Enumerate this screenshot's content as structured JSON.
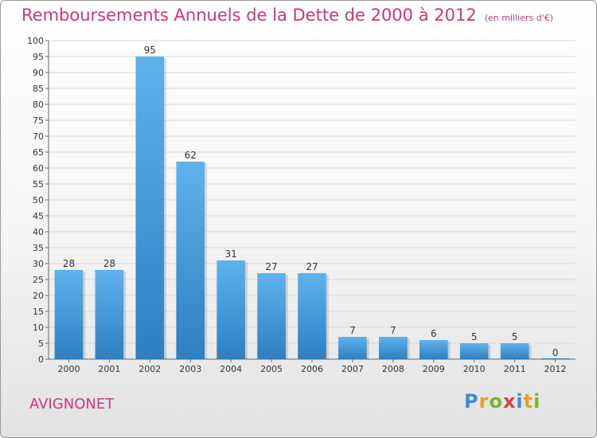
{
  "colors": {
    "title": "#c8387a",
    "bar_light": "#5fb2ec",
    "bar_dark": "#2d7fc1",
    "grid": "#d9d9d9",
    "axis": "#666666"
  },
  "header": {
    "title": "Remboursements Annuels de la Dette de 2000 à 2012",
    "subtitle": "(en milliers d'€)"
  },
  "footer": {
    "town": "AVIGNONET",
    "logo_letters": [
      {
        "char": "P",
        "color": "#3a8fd6"
      },
      {
        "char": "r",
        "color": "#e8a21c"
      },
      {
        "char": "o",
        "color": "#7ab530"
      },
      {
        "char": "x",
        "color": "#d94141"
      },
      {
        "char": "i",
        "color": "#3a8fd6"
      },
      {
        "char": "t",
        "color": "#e8a21c"
      },
      {
        "char": "i",
        "color": "#7ab530"
      }
    ]
  },
  "chart_data": {
    "type": "bar",
    "categories": [
      "2000",
      "2001",
      "2002",
      "2003",
      "2004",
      "2005",
      "2006",
      "2007",
      "2008",
      "2009",
      "2010",
      "2011",
      "2012"
    ],
    "values": [
      28,
      28,
      95,
      62,
      31,
      27,
      27,
      7,
      7,
      6,
      5,
      5,
      0
    ],
    "ylim": [
      0,
      100
    ],
    "yticks": [
      0,
      5,
      10,
      15,
      20,
      25,
      30,
      35,
      40,
      45,
      50,
      55,
      60,
      65,
      70,
      75,
      80,
      85,
      90,
      95,
      100
    ],
    "grid": true,
    "legend": "none"
  }
}
